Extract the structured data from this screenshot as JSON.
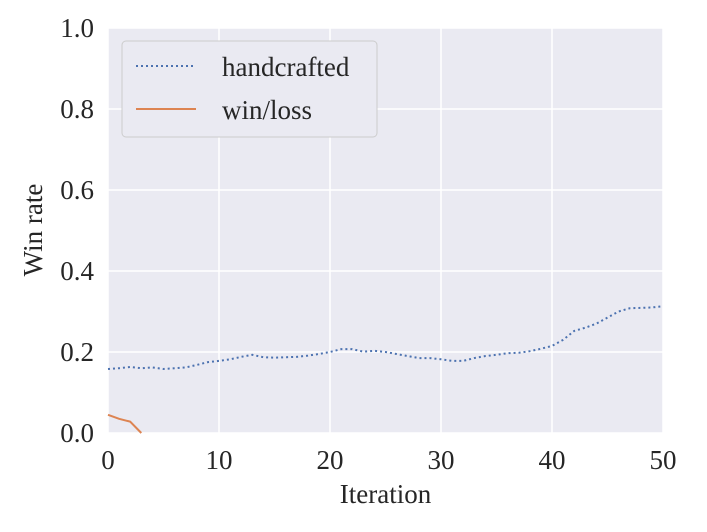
{
  "chart_data": {
    "type": "line",
    "xlabel": "Iteration",
    "ylabel": "Win rate",
    "xlim": [
      0,
      50
    ],
    "ylim": [
      0,
      1.0
    ],
    "xticks": [
      "0",
      "10",
      "20",
      "30",
      "40",
      "50"
    ],
    "yticks": [
      "0.0",
      "0.2",
      "0.4",
      "0.6",
      "0.8",
      "1.0"
    ],
    "grid": true,
    "legend": "top-left",
    "colors": {
      "background": "#eaeaf2",
      "grid": "#ffffff",
      "handcrafted": "#4c72b0",
      "winloss": "#dd8452"
    },
    "series": [
      {
        "name": "handcrafted",
        "style": "dotted",
        "x": [
          0,
          1,
          2,
          3,
          4,
          5,
          6,
          7,
          8,
          9,
          10,
          11,
          12,
          13,
          14,
          15,
          16,
          17,
          18,
          19,
          20,
          21,
          22,
          23,
          24,
          25,
          26,
          27,
          28,
          29,
          30,
          31,
          32,
          33,
          34,
          35,
          36,
          37,
          38,
          39,
          40,
          41,
          42,
          43,
          44,
          45,
          46,
          47,
          48,
          49,
          50
        ],
        "y": [
          0.158,
          0.16,
          0.163,
          0.16,
          0.162,
          0.158,
          0.16,
          0.162,
          0.168,
          0.175,
          0.178,
          0.182,
          0.188,
          0.193,
          0.187,
          0.186,
          0.187,
          0.188,
          0.191,
          0.195,
          0.2,
          0.207,
          0.207,
          0.201,
          0.203,
          0.2,
          0.195,
          0.19,
          0.185,
          0.185,
          0.182,
          0.178,
          0.178,
          0.185,
          0.19,
          0.193,
          0.197,
          0.198,
          0.202,
          0.208,
          0.215,
          0.23,
          0.252,
          0.26,
          0.27,
          0.285,
          0.3,
          0.308,
          0.309,
          0.31,
          0.313
        ]
      },
      {
        "name": "win/loss",
        "style": "solid",
        "x": [
          0,
          1,
          2,
          3
        ],
        "y": [
          0.045,
          0.035,
          0.028,
          0.0
        ]
      }
    ]
  }
}
